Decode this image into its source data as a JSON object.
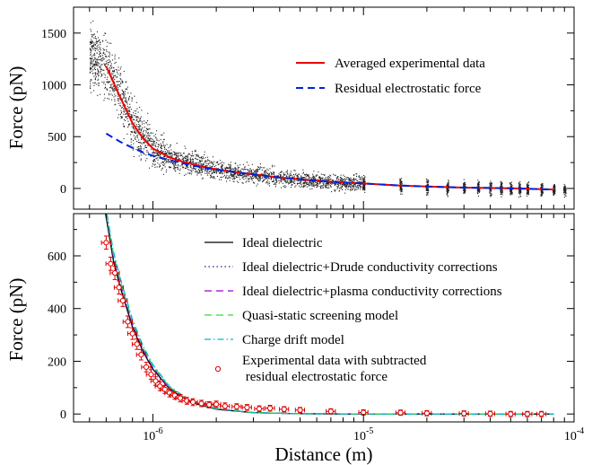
{
  "xlabel": "Distance (m)",
  "chart_data": [
    {
      "type": "scatter",
      "panel": "top",
      "title": "",
      "xlabel": "Distance (m)",
      "ylabel": "Force (pN)",
      "x_scale": "log",
      "xlim": [
        4.2e-07,
        0.0001
      ],
      "ylim": [
        -200,
        1750
      ],
      "yticks": [
        0,
        500,
        1000,
        1500
      ],
      "ytick_labels": [
        "0",
        "500",
        "1000",
        "1500"
      ],
      "xticks": [
        1e-06,
        1e-05,
        0.0001
      ],
      "xticks_label_shown": false,
      "grid": false,
      "legend_position": "top-right",
      "series": [
        {
          "name": "Averaged experimental data",
          "style": "solid",
          "color": "#ee0000",
          "x": [
            6e-07,
            7e-07,
            8e-07,
            9e-07,
            1e-06,
            1.2e-06,
            1.4e-06,
            1.7e-06,
            2e-06,
            2.5e-06,
            3e-06,
            4e-06,
            5e-06,
            7e-06,
            1e-05,
            1.5e-05,
            2e-05,
            3e-05,
            5e-05,
            8e-05
          ],
          "y": [
            1180,
            880,
            630,
            480,
            385,
            300,
            255,
            212,
            185,
            155,
            135,
            106,
            88,
            65,
            48,
            28,
            18,
            8,
            2,
            -10
          ]
        },
        {
          "name": "Residual electrostatic force",
          "style": "dashed",
          "color": "#0022dd",
          "x": [
            6e-07,
            7e-07,
            8e-07,
            9e-07,
            1e-06,
            1.2e-06,
            1.4e-06,
            1.7e-06,
            2e-06,
            2.5e-06,
            3e-06,
            4e-06,
            5e-06,
            7e-06,
            1e-05,
            1.5e-05,
            2e-05,
            3e-05,
            5e-05,
            8e-05
          ],
          "y": [
            530,
            450,
            392,
            348,
            315,
            272,
            240,
            205,
            182,
            155,
            135,
            106,
            88,
            65,
            48,
            28,
            18,
            8,
            2,
            -10
          ]
        },
        {
          "name": "",
          "style": "points",
          "color": "#222222",
          "band_envelope": {
            "x": [
              5e-07,
              6e-07,
              8e-07,
              1e-06,
              1.3e-06,
              2e-06,
              3e-06,
              5e-06,
              1e-05,
              2e-05,
              5e-05,
              9e-05
            ],
            "center": [
              1280,
              1180,
              630,
              385,
              280,
              185,
              135,
              88,
              48,
              18,
              2,
              -10
            ],
            "spread": [
              320,
              330,
              260,
              190,
              140,
              100,
              90,
              80,
              90,
              90,
              80,
              60
            ]
          },
          "discrete_columns_x": [
            1e-05,
            1.5e-05,
            2e-05,
            2.5e-05,
            3e-05,
            3.5e-05,
            4e-05,
            4.5e-05,
            5e-05,
            5.5e-05,
            6e-05,
            7e-05,
            8e-05,
            9e-05
          ]
        }
      ]
    },
    {
      "type": "line",
      "panel": "bottom",
      "title": "",
      "xlabel": "Distance (m)",
      "ylabel": "Force (pN)",
      "x_scale": "log",
      "xlim": [
        4.2e-07,
        0.0001
      ],
      "ylim": [
        -30,
        760
      ],
      "yticks": [
        0,
        200,
        400,
        600
      ],
      "ytick_labels": [
        "0",
        "200",
        "400",
        "600"
      ],
      "xticks": [
        1e-06,
        1e-05,
        0.0001
      ],
      "xtick_labels": [
        "10^-6",
        "10^-5",
        "10^-4"
      ],
      "grid": false,
      "legend_position": "top-right",
      "series": [
        {
          "name": "Ideal dielectric",
          "style": "solid",
          "color": "#000000",
          "x": [
            5.9e-07,
            6.5e-07,
            7e-07,
            8e-07,
            9e-07,
            1e-06,
            1.2e-06,
            1.5e-06,
            2e-06,
            3e-06,
            5e-06,
            1e-05,
            2e-05,
            8e-05
          ],
          "y": [
            780,
            580,
            480,
            330,
            235,
            170,
            95,
            45,
            18,
            5,
            1,
            0,
            0,
            0
          ]
        },
        {
          "name": "Ideal dielectric+Drude conductivity corrections",
          "style": "dotted",
          "color": "#1a1aa0",
          "x": [
            5.9e-07,
            6.5e-07,
            7e-07,
            8e-07,
            9e-07,
            1e-06,
            1.2e-06,
            1.5e-06,
            2e-06,
            3e-06,
            5e-06,
            1e-05,
            2e-05,
            8e-05
          ],
          "y": [
            790,
            590,
            490,
            338,
            240,
            174,
            97,
            46,
            18,
            5,
            1,
            0,
            0,
            0
          ]
        },
        {
          "name": "Ideal dielectric+plasma conductivity corrections",
          "style": "dashed",
          "color": "#9900cc",
          "x": [
            5.9e-07,
            6.5e-07,
            7e-07,
            8e-07,
            9e-07,
            1e-06,
            1.2e-06,
            1.5e-06,
            2e-06,
            3e-06,
            5e-06,
            1e-05,
            2e-05,
            8e-05
          ],
          "y": [
            795,
            595,
            495,
            342,
            243,
            176,
            98,
            47,
            19,
            5,
            1,
            0,
            0,
            0
          ]
        },
        {
          "name": "Quasi-static screening model",
          "style": "dashed",
          "color": "#33dd33",
          "x": [
            5.9e-07,
            6.5e-07,
            7e-07,
            8e-07,
            9e-07,
            1e-06,
            1.2e-06,
            1.5e-06,
            2e-06,
            3e-06,
            5e-06,
            1e-05,
            2e-05,
            8e-05
          ],
          "y": [
            800,
            605,
            505,
            350,
            250,
            182,
            102,
            49,
            20,
            5,
            1,
            0,
            0,
            0
          ]
        },
        {
          "name": "Charge drift model",
          "style": "dashdot",
          "color": "#00bbcc",
          "x": [
            5.9e-07,
            6.5e-07,
            7e-07,
            8e-07,
            9e-07,
            1e-06,
            1.2e-06,
            1.5e-06,
            2e-06,
            3e-06,
            5e-06,
            1e-05,
            2e-05,
            8e-05
          ],
          "y": [
            810,
            615,
            515,
            358,
            256,
            187,
            105,
            51,
            21,
            5,
            1,
            0,
            0,
            0
          ]
        },
        {
          "name": "Experimental data with subtracted residual electrostatic force",
          "legend_lines": [
            "Experimental data with subtracted",
            " residual electrostatic force"
          ],
          "style": "markers",
          "marker": "open-circle",
          "color": "#dd0000",
          "x": [
            6e-07,
            6.3e-07,
            6.6e-07,
            6.9e-07,
            7.2e-07,
            7.6e-07,
            8e-07,
            8.4e-07,
            8.8e-07,
            9.3e-07,
            9.8e-07,
            1.03e-06,
            1.08e-06,
            1.14e-06,
            1.2e-06,
            1.27e-06,
            1.35e-06,
            1.45e-06,
            1.55e-06,
            1.7e-06,
            1.85e-06,
            2e-06,
            2.2e-06,
            2.5e-06,
            2.8e-06,
            3.2e-06,
            3.6e-06,
            4.2e-06,
            5e-06,
            7e-06,
            1e-05,
            1.5e-05,
            2e-05,
            3e-05,
            4e-05,
            5e-05,
            6e-05,
            7e-05
          ],
          "y": [
            650,
            570,
            535,
            480,
            430,
            350,
            305,
            265,
            225,
            178,
            150,
            125,
            105,
            93,
            80,
            70,
            60,
            50,
            45,
            40,
            35,
            37,
            30,
            28,
            25,
            20,
            22,
            18,
            15,
            10,
            6,
            5,
            3,
            2,
            1,
            0,
            0,
            0
          ],
          "y_err": [
            25,
            25,
            25,
            25,
            22,
            22,
            22,
            20,
            20,
            18,
            18,
            16,
            16,
            15,
            15,
            14,
            14,
            13,
            13,
            12,
            12,
            12,
            12,
            11,
            11,
            11,
            11,
            10,
            10,
            10,
            10,
            10,
            10,
            10,
            10,
            10,
            10,
            10
          ],
          "x_err_rel": 0.05
        }
      ]
    }
  ]
}
